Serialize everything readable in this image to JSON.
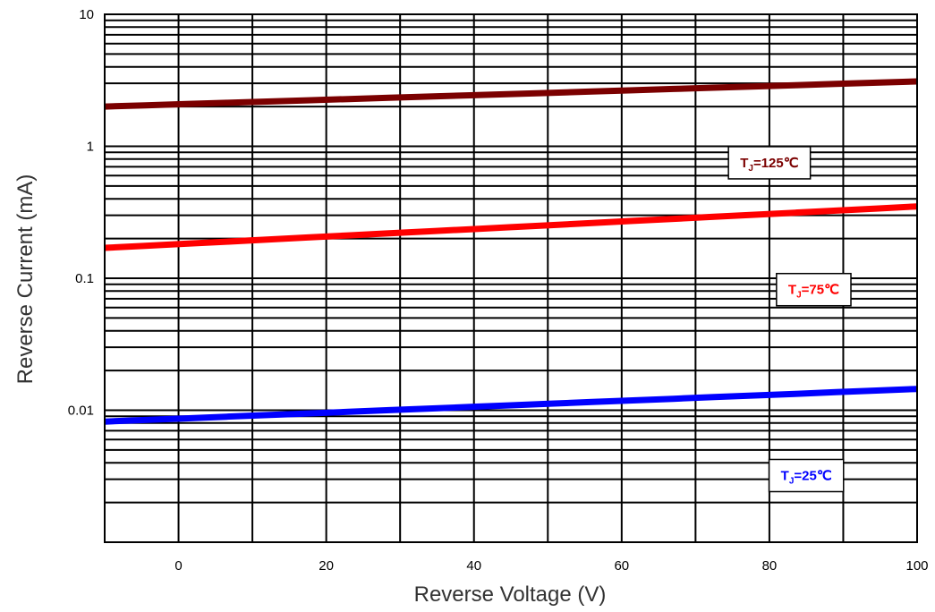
{
  "chart_data": {
    "type": "line",
    "xlabel": "Reverse Voltage (V)",
    "ylabel": "Reverse Current (mA)",
    "xlim": [
      -10,
      100
    ],
    "ylim": [
      0.001,
      10
    ],
    "yscale": "log",
    "grid": true,
    "x_ticks": [
      0,
      20,
      40,
      60,
      80,
      100
    ],
    "y_ticks": [
      {
        "value": 10,
        "label": "10"
      },
      {
        "value": 1,
        "label": "1"
      },
      {
        "value": 0.1,
        "label": "0.1"
      },
      {
        "value": 0.01,
        "label": "0.01"
      }
    ],
    "series": [
      {
        "name": "TJ=125℃",
        "label_main": "T",
        "label_sub": "J",
        "label_rest": "=125℃",
        "color": "#7b0000",
        "x": [
          -10,
          100
        ],
        "y": [
          2.0,
          3.1
        ],
        "label_at": [
          80,
          0.75
        ]
      },
      {
        "name": "TJ=75℃",
        "label_main": "T",
        "label_sub": "J",
        "label_rest": "=75℃",
        "color": "#ff0000",
        "x": [
          -10,
          100
        ],
        "y": [
          0.17,
          0.35
        ],
        "label_at": [
          86,
          0.082
        ]
      },
      {
        "name": "TJ=25℃",
        "label_main": "T",
        "label_sub": "J",
        "label_rest": "=25℃",
        "color": "#0000ff",
        "x": [
          -10,
          100
        ],
        "y": [
          0.0082,
          0.0145
        ],
        "label_at": [
          85,
          0.0032
        ]
      }
    ]
  }
}
